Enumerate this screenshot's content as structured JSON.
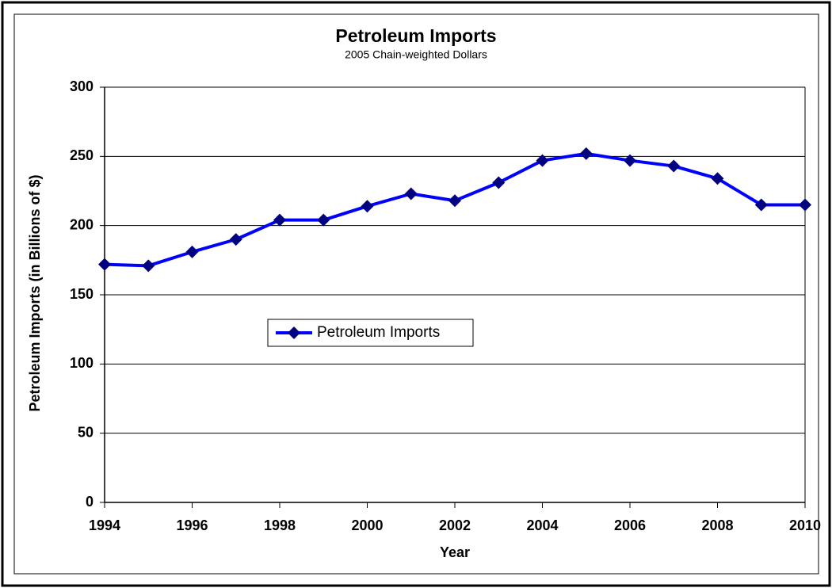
{
  "chart_data": {
    "type": "line",
    "title": "Petroleum Imports",
    "subtitle": "2005 Chain-weighted Dollars",
    "x_label": "Year",
    "y_label": "Petroleum Imports (in Billions of $)",
    "x": [
      1994,
      1995,
      1996,
      1997,
      1998,
      1999,
      2000,
      2001,
      2002,
      2003,
      2004,
      2005,
      2006,
      2007,
      2008,
      2009,
      2010
    ],
    "series": [
      {
        "name": "Petroleum Imports",
        "color": "#0000ff",
        "marker_color": "#000080",
        "values": [
          172,
          171,
          181,
          190,
          204,
          204,
          214,
          223,
          218,
          231,
          247,
          252,
          247,
          243,
          234,
          215,
          215
        ]
      }
    ],
    "xlim": [
      1994,
      2010
    ],
    "xticks": [
      1994,
      1996,
      1998,
      2000,
      2002,
      2004,
      2006,
      2008,
      2010
    ],
    "ylim": [
      0,
      300
    ],
    "yticks": [
      0,
      50,
      100,
      150,
      200,
      250,
      300
    ],
    "grid": true,
    "legend": "inside-left"
  }
}
